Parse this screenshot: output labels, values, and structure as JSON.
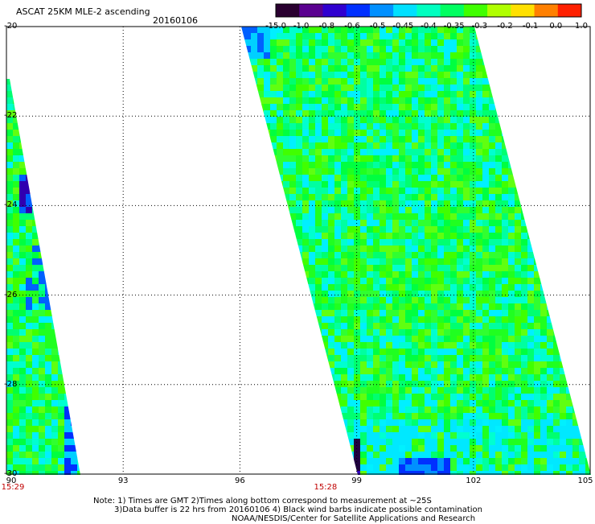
{
  "header": {
    "title": "ASCAT 25KM MLE-2 ascending",
    "date": "20160106"
  },
  "colorbar": {
    "labels": [
      "-15.0",
      "-1.0",
      "-0.8",
      "-0.6",
      "-0.5",
      "-0.45",
      "-0.4",
      "-0.35",
      "-0.3",
      "-0.2",
      "-0.1",
      "0.0",
      "1.0"
    ],
    "colors": [
      "#2a0030",
      "#5a0090",
      "#3000d0",
      "#0030ff",
      "#0090ff",
      "#00e0ff",
      "#00ffc0",
      "#00ff60",
      "#40ff00",
      "#b0ff00",
      "#ffe000",
      "#ff8000",
      "#ff2000"
    ]
  },
  "axes": {
    "x_ticks": [
      "90",
      "93",
      "96",
      "99",
      "102",
      "105"
    ],
    "y_ticks": [
      "-20",
      "-22",
      "-24",
      "-26",
      "-28",
      "-30"
    ],
    "x_range": [
      90,
      105
    ],
    "y_range": [
      -30,
      -20
    ]
  },
  "times": [
    {
      "label": "15:29",
      "lon": 90
    },
    {
      "label": "15:28",
      "lon": 98.2
    }
  ],
  "notes": {
    "line1": "Note: 1) Times are GMT 2)Times along bottom correspond to measurement at ~25S",
    "line2": "3)Data buffer is 22 hrs from 20160106 4) Black wind barbs indicate possible contamination",
    "line3": "NOAA/NESDIS/Center for Satellite Applications and Research"
  }
}
